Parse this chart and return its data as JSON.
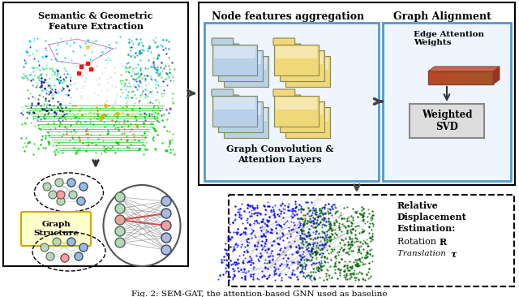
{
  "bg_color": "#ffffff",
  "box1_title": "Semantic & Geometric\nFeature Extraction",
  "box2_title": "Node features aggregation",
  "box3_title": "Graph Alignment",
  "box4_label": "Graph Convolution &\nAttention Layers",
  "box5_label": "Edge Attention\nWeights",
  "box6_label": "Weighted\nSVD",
  "box7_label": "Graph\nStructure",
  "caption": "Fig. 2: SEM-GAT, the attention-based GNN used as baseline"
}
